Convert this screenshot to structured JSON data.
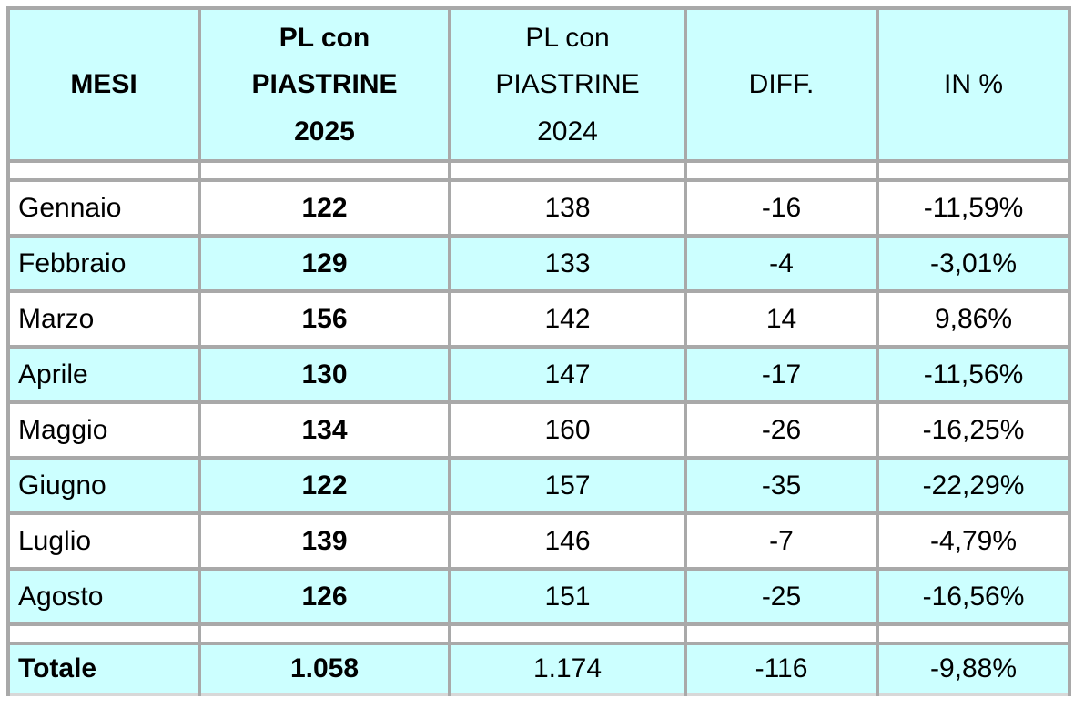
{
  "table": {
    "columns": [
      {
        "label": "MESI",
        "bold": true
      },
      {
        "label": "PL con\nPIASTRINE\n2025",
        "bold": true
      },
      {
        "label": "PL con\nPIASTRINE\n2024",
        "bold": false
      },
      {
        "label": "DIFF.",
        "bold": false
      },
      {
        "label": "IN %",
        "bold": false
      }
    ],
    "rows": [
      {
        "month": "Gennaio",
        "pl2025": "122",
        "pl2024": "138",
        "diff": "-16",
        "pct": "-11,59%"
      },
      {
        "month": "Febbraio",
        "pl2025": "129",
        "pl2024": "133",
        "diff": "-4",
        "pct": "-3,01%"
      },
      {
        "month": "Marzo",
        "pl2025": "156",
        "pl2024": "142",
        "diff": "14",
        "pct": "9,86%"
      },
      {
        "month": "Aprile",
        "pl2025": "130",
        "pl2024": "147",
        "diff": "-17",
        "pct": "-11,56%"
      },
      {
        "month": "Maggio",
        "pl2025": "134",
        "pl2024": "160",
        "diff": "-26",
        "pct": "-16,25%"
      },
      {
        "month": "Giugno",
        "pl2025": "122",
        "pl2024": "157",
        "diff": "-35",
        "pct": "-22,29%"
      },
      {
        "month": "Luglio",
        "pl2025": "139",
        "pl2024": "146",
        "diff": "-7",
        "pct": "-4,79%"
      },
      {
        "month": "Agosto",
        "pl2025": "126",
        "pl2024": "151",
        "diff": "-25",
        "pct": "-16,56%"
      }
    ],
    "total": {
      "label": "Totale",
      "pl2025": "1.058",
      "pl2024": "1.174",
      "diff": "-116",
      "pct": "-9,88%"
    }
  },
  "colors": {
    "header_bg": "#ccffff",
    "stripe_bg": "#ccffff",
    "row_bg": "#ffffff",
    "border": "#a9a9a9",
    "text": "#000000"
  }
}
